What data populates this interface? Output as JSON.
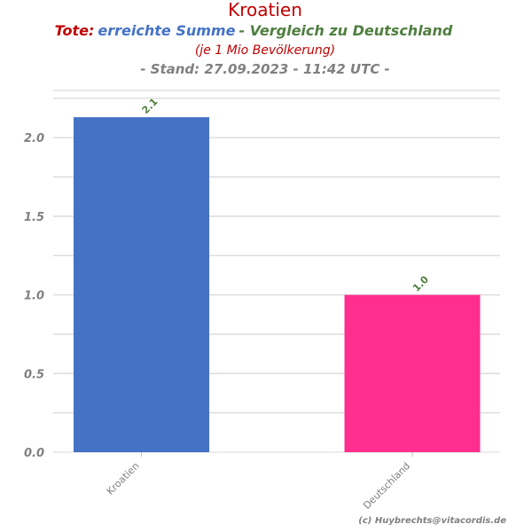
{
  "header": {
    "title": "Kroatien",
    "subtitle_part1": "Tote:",
    "subtitle_part2": "erreichte Summe",
    "subtitle_part3": " - Vergleich zu Deutschland",
    "subtitle_line2": "(je 1 Mio Bevölkerung)",
    "subtitle_line3": "- Stand: 27.09.2023 - 11:42 UTC -"
  },
  "credit": "(c) Huybrechts@vitacordis.de",
  "colors": {
    "title": "#c00000",
    "tote": "#c00000",
    "summe": "#4472c4",
    "vergleich": "#4f7f3f",
    "bar_kroatien": "#4472c4",
    "bar_deutschland": "#ff2e8f",
    "grid": "#d9d9d9",
    "tick": "#808080"
  },
  "chart_data": {
    "type": "bar",
    "categories": [
      "Kroatien",
      "Deutschland"
    ],
    "values": [
      2.13,
      1.0
    ],
    "value_labels": [
      "2.1",
      "1.0"
    ],
    "bar_colors": [
      "#4472c4",
      "#ff2e8f"
    ],
    "yticks": [
      "0.0",
      "0.5",
      "1.0",
      "1.5",
      "2.0"
    ],
    "ylim": [
      0,
      2.3
    ],
    "grid": true
  }
}
